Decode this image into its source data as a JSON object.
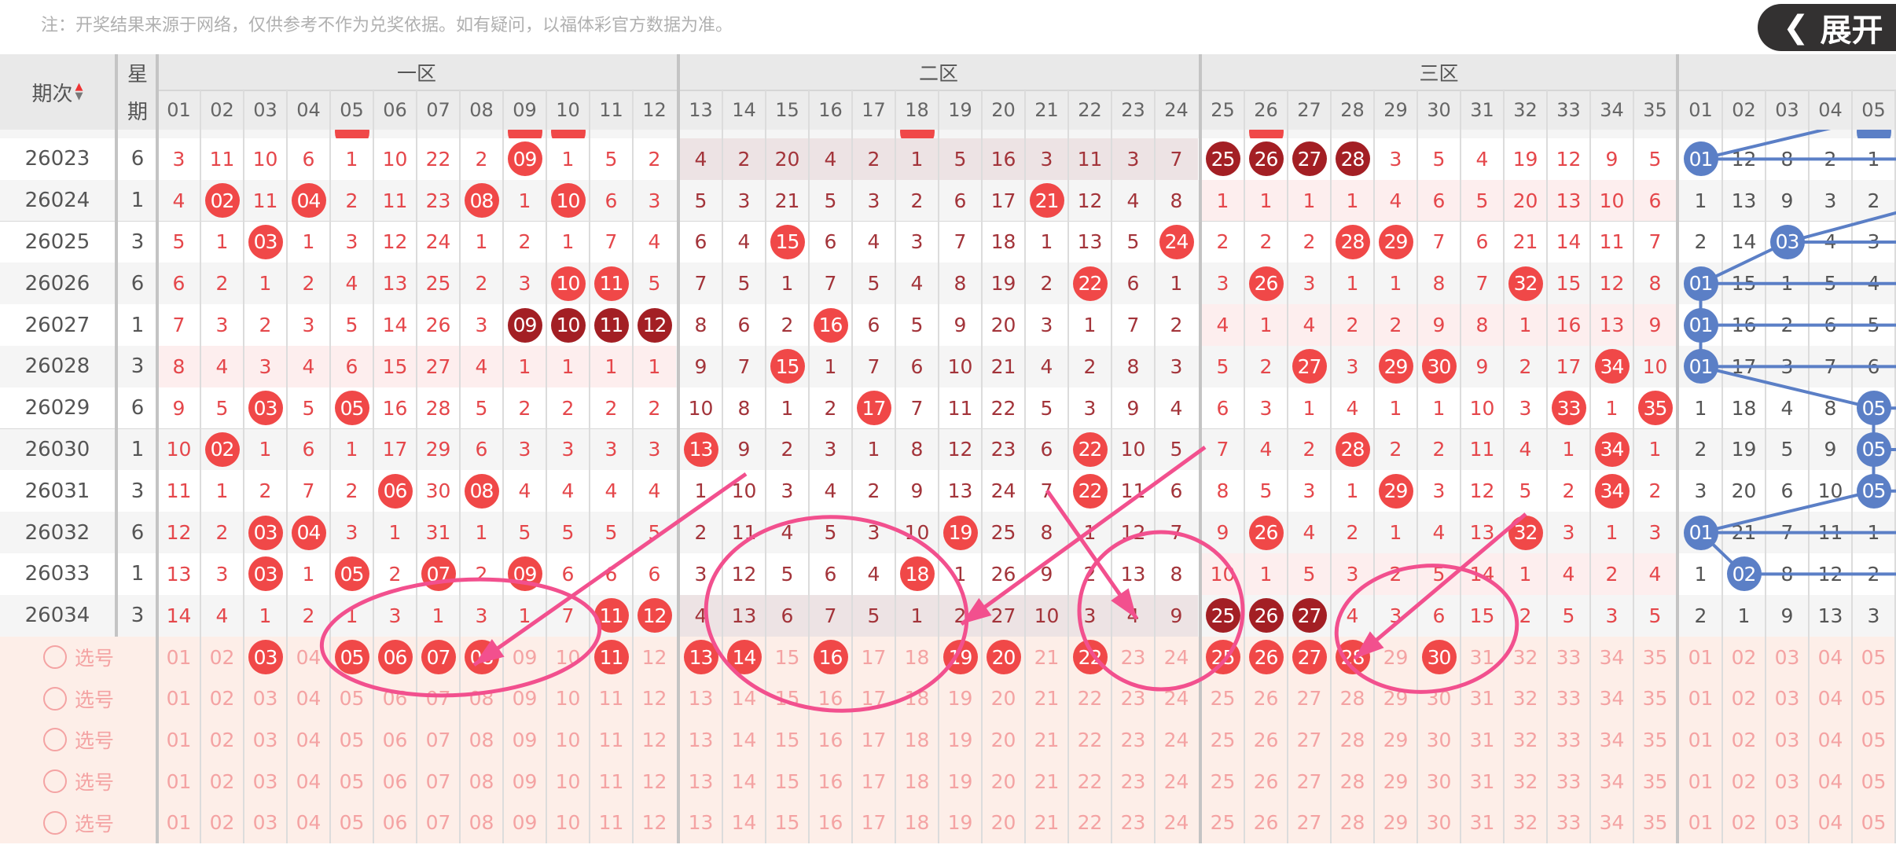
{
  "note": "注：开奖结果来源于网络，仅供参考不作为兑奖依据。如有疑问，以福体彩官方数据为准。",
  "header": {
    "issue_label": "期次",
    "sort_icon": "sort-up-down-icon",
    "week_label_top": "星",
    "week_label_bottom": "期",
    "zones": [
      "一区",
      "二区",
      "三区",
      ""
    ],
    "columns": [
      "01",
      "02",
      "03",
      "04",
      "05",
      "06",
      "07",
      "08",
      "09",
      "10",
      "11",
      "12",
      "13",
      "14",
      "15",
      "16",
      "17",
      "18",
      "19",
      "20",
      "21",
      "22",
      "23",
      "24",
      "25",
      "26",
      "27",
      "28",
      "29",
      "30",
      "31",
      "32",
      "33",
      "34",
      "35"
    ],
    "blue_columns": [
      "01",
      "02",
      "03",
      "04",
      "05"
    ]
  },
  "colors": {
    "hit_red": "#f04848",
    "hit_dark": "#a31f24",
    "blue_ball": "#5b7fc6",
    "miss_red": "#e5474b",
    "miss_zone2": "#a3343a",
    "annotation_pink": "#f2508e",
    "select_bg": "#fdeee8",
    "select_text": "#f4a3a3"
  },
  "partial_row": {
    "hits": [
      5,
      9,
      10,
      18,
      26
    ],
    "blue_hits": [
      5
    ]
  },
  "rows": [
    {
      "issue": "26023",
      "week": "6",
      "cells": [
        "3",
        "11",
        "10",
        "6",
        "1",
        "10",
        "22",
        "2",
        "09",
        "1",
        "5",
        "2",
        "4",
        "2",
        "20",
        "4",
        "2",
        "1",
        "5",
        "16",
        "3",
        "11",
        "3",
        "7",
        "25",
        "26",
        "27",
        "28",
        "3",
        "5",
        "4",
        "19",
        "12",
        "9",
        "5"
      ],
      "hits": [
        9,
        25,
        26,
        27,
        28
      ],
      "dark": [
        25,
        26,
        27,
        28
      ],
      "tint": {
        "z2": "dim"
      },
      "blue": [
        "01",
        "12",
        "8",
        "2",
        "1"
      ],
      "blue_hits": [
        1
      ]
    },
    {
      "issue": "26024",
      "week": "1",
      "cells": [
        "4",
        "02",
        "11",
        "04",
        "2",
        "11",
        "23",
        "08",
        "1",
        "10",
        "6",
        "3",
        "5",
        "3",
        "21",
        "5",
        "3",
        "2",
        "6",
        "17",
        "21",
        "12",
        "4",
        "8",
        "1",
        "1",
        "1",
        "1",
        "4",
        "6",
        "5",
        "20",
        "13",
        "10",
        "6"
      ],
      "hits": [
        2,
        4,
        8,
        10,
        21
      ],
      "dark": [],
      "tint": {
        "z3": "pink"
      },
      "blue": [
        "1",
        "13",
        "9",
        "3",
        "2"
      ],
      "blue_hits": []
    },
    {
      "issue": "26025",
      "week": "3",
      "cells": [
        "5",
        "1",
        "03",
        "1",
        "3",
        "12",
        "24",
        "1",
        "2",
        "1",
        "7",
        "4",
        "6",
        "4",
        "15",
        "6",
        "4",
        "3",
        "7",
        "18",
        "1",
        "13",
        "5",
        "24",
        "2",
        "2",
        "2",
        "28",
        "29",
        "7",
        "6",
        "21",
        "14",
        "11",
        "7"
      ],
      "hits": [
        3,
        15,
        24,
        28,
        29
      ],
      "dark": [],
      "tint": {},
      "blue": [
        "2",
        "14",
        "03",
        "4",
        "3"
      ],
      "blue_hits": [
        3
      ]
    },
    {
      "issue": "26026",
      "week": "6",
      "cells": [
        "6",
        "2",
        "1",
        "2",
        "4",
        "13",
        "25",
        "2",
        "3",
        "10",
        "11",
        "5",
        "7",
        "5",
        "1",
        "7",
        "5",
        "4",
        "8",
        "19",
        "2",
        "22",
        "6",
        "1",
        "3",
        "26",
        "3",
        "1",
        "1",
        "8",
        "7",
        "32",
        "15",
        "12",
        "8"
      ],
      "hits": [
        10,
        11,
        22,
        26,
        32
      ],
      "dark": [],
      "tint": {},
      "blue": [
        "01",
        "15",
        "1",
        "5",
        "4"
      ],
      "blue_hits": [
        1
      ]
    },
    {
      "issue": "26027",
      "week": "1",
      "cells": [
        "7",
        "3",
        "2",
        "3",
        "5",
        "14",
        "26",
        "3",
        "09",
        "10",
        "11",
        "12",
        "8",
        "6",
        "2",
        "16",
        "6",
        "5",
        "9",
        "20",
        "3",
        "1",
        "7",
        "2",
        "4",
        "1",
        "4",
        "2",
        "2",
        "9",
        "8",
        "1",
        "16",
        "13",
        "9"
      ],
      "hits": [
        9,
        10,
        11,
        12,
        16
      ],
      "dark": [
        9,
        10,
        11,
        12
      ],
      "tint": {
        "z3": "pink"
      },
      "blue": [
        "01",
        "16",
        "2",
        "6",
        "5"
      ],
      "blue_hits": [
        1
      ]
    },
    {
      "issue": "26028",
      "week": "3",
      "cells": [
        "8",
        "4",
        "3",
        "4",
        "6",
        "15",
        "27",
        "4",
        "1",
        "1",
        "1",
        "1",
        "9",
        "7",
        "15",
        "1",
        "7",
        "6",
        "10",
        "21",
        "4",
        "2",
        "8",
        "3",
        "5",
        "2",
        "27",
        "3",
        "29",
        "30",
        "9",
        "2",
        "17",
        "34",
        "10"
      ],
      "hits": [
        15,
        27,
        29,
        30,
        34
      ],
      "dark": [],
      "tint": {
        "z1": "pink"
      },
      "blue": [
        "01",
        "17",
        "3",
        "7",
        "6"
      ],
      "blue_hits": [
        1
      ]
    },
    {
      "issue": "26029",
      "week": "6",
      "cells": [
        "9",
        "5",
        "03",
        "5",
        "05",
        "16",
        "28",
        "5",
        "2",
        "2",
        "2",
        "2",
        "10",
        "8",
        "1",
        "2",
        "17",
        "7",
        "11",
        "22",
        "5",
        "3",
        "9",
        "4",
        "6",
        "3",
        "1",
        "4",
        "1",
        "1",
        "10",
        "3",
        "33",
        "1",
        "35"
      ],
      "hits": [
        3,
        5,
        17,
        33,
        35
      ],
      "dark": [],
      "tint": {},
      "blue": [
        "1",
        "18",
        "4",
        "8",
        "05"
      ],
      "blue_hits": [
        5
      ]
    },
    {
      "issue": "26030",
      "week": "1",
      "cells": [
        "10",
        "02",
        "1",
        "6",
        "1",
        "17",
        "29",
        "6",
        "3",
        "3",
        "3",
        "3",
        "13",
        "9",
        "2",
        "3",
        "1",
        "8",
        "12",
        "23",
        "6",
        "22",
        "10",
        "5",
        "7",
        "4",
        "2",
        "28",
        "2",
        "2",
        "11",
        "4",
        "1",
        "34",
        "1"
      ],
      "hits": [
        2,
        13,
        22,
        28,
        34
      ],
      "dark": [],
      "tint": {},
      "blue": [
        "2",
        "19",
        "5",
        "9",
        "05"
      ],
      "blue_hits": [
        5
      ]
    },
    {
      "issue": "26031",
      "week": "3",
      "cells": [
        "11",
        "1",
        "2",
        "7",
        "2",
        "06",
        "30",
        "08",
        "4",
        "4",
        "4",
        "4",
        "1",
        "10",
        "3",
        "4",
        "2",
        "9",
        "13",
        "24",
        "7",
        "22",
        "11",
        "6",
        "8",
        "5",
        "3",
        "1",
        "29",
        "3",
        "12",
        "5",
        "2",
        "34",
        "2"
      ],
      "hits": [
        6,
        8,
        22,
        29,
        34
      ],
      "dark": [],
      "tint": {},
      "blue": [
        "3",
        "20",
        "6",
        "10",
        "05"
      ],
      "blue_hits": [
        5
      ]
    },
    {
      "issue": "26032",
      "week": "6",
      "cells": [
        "12",
        "2",
        "03",
        "04",
        "3",
        "1",
        "31",
        "1",
        "5",
        "5",
        "5",
        "5",
        "2",
        "11",
        "4",
        "5",
        "3",
        "10",
        "19",
        "25",
        "8",
        "1",
        "12",
        "7",
        "9",
        "26",
        "4",
        "2",
        "1",
        "4",
        "13",
        "32",
        "3",
        "1",
        "3"
      ],
      "hits": [
        3,
        4,
        19,
        26,
        32
      ],
      "dark": [],
      "tint": {},
      "blue": [
        "01",
        "21",
        "7",
        "11",
        "1"
      ],
      "blue_hits": [
        1
      ]
    },
    {
      "issue": "26033",
      "week": "1",
      "cells": [
        "13",
        "3",
        "03",
        "1",
        "05",
        "2",
        "07",
        "2",
        "09",
        "6",
        "6",
        "6",
        "3",
        "12",
        "5",
        "6",
        "4",
        "18",
        "1",
        "26",
        "9",
        "2",
        "13",
        "8",
        "10",
        "1",
        "5",
        "3",
        "2",
        "5",
        "14",
        "1",
        "4",
        "2",
        "4"
      ],
      "hits": [
        3,
        5,
        7,
        9,
        18
      ],
      "dark": [],
      "tint": {
        "z3": "pink"
      },
      "blue": [
        "1",
        "02",
        "8",
        "12",
        "2"
      ],
      "blue_hits": [
        2
      ]
    },
    {
      "issue": "26034",
      "week": "3",
      "cells": [
        "14",
        "4",
        "1",
        "2",
        "1",
        "3",
        "1",
        "3",
        "1",
        "7",
        "11",
        "12",
        "4",
        "13",
        "6",
        "7",
        "5",
        "1",
        "2",
        "27",
        "10",
        "3",
        "4",
        "9",
        "25",
        "26",
        "27",
        "4",
        "3",
        "6",
        "15",
        "2",
        "5",
        "3",
        "5"
      ],
      "hits": [
        11,
        12,
        25,
        26,
        27
      ],
      "dark": [
        25,
        26,
        27
      ],
      "tint": {
        "z2": "dim"
      },
      "blue": [
        "2",
        "1",
        "9",
        "13",
        "3"
      ],
      "blue_hits": []
    }
  ],
  "selection": {
    "label": "选号",
    "rows": [
      {
        "selected": [
          3,
          5,
          6,
          7,
          8,
          11,
          13,
          14,
          16,
          19,
          20,
          22,
          25,
          26,
          27,
          28,
          30
        ]
      },
      {
        "selected": []
      },
      {
        "selected": []
      },
      {
        "selected": []
      },
      {
        "selected": []
      }
    ]
  },
  "expand_button": {
    "label": "展开",
    "icon": "chevron-left-icon"
  }
}
